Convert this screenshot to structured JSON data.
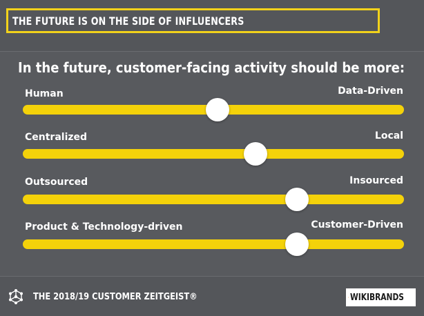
{
  "header": {
    "title": "THE FUTURE IS ON THE SIDE OF INFLUENCERS"
  },
  "question": "In the future, customer-facing activity should be more:",
  "sliders": [
    {
      "left_label": "Human",
      "right_label": "Data-Driven",
      "value": 0.51
    },
    {
      "left_label": "Centralized",
      "right_label": "Local",
      "value": 0.61
    },
    {
      "left_label": "Outsourced",
      "right_label": "Insourced",
      "value": 0.72
    },
    {
      "left_label": "Product & Technology-driven",
      "right_label": "Customer-Driven",
      "value": 0.72
    }
  ],
  "footer": {
    "text": "THE 2018/19 CUSTOMER ZEITGEIST®",
    "brand": "WIKIBRANDS",
    "icon": "network-cube-icon"
  },
  "colors": {
    "background": "#585a5e",
    "accent": "#f4d20a",
    "knob": "#ffffff"
  }
}
